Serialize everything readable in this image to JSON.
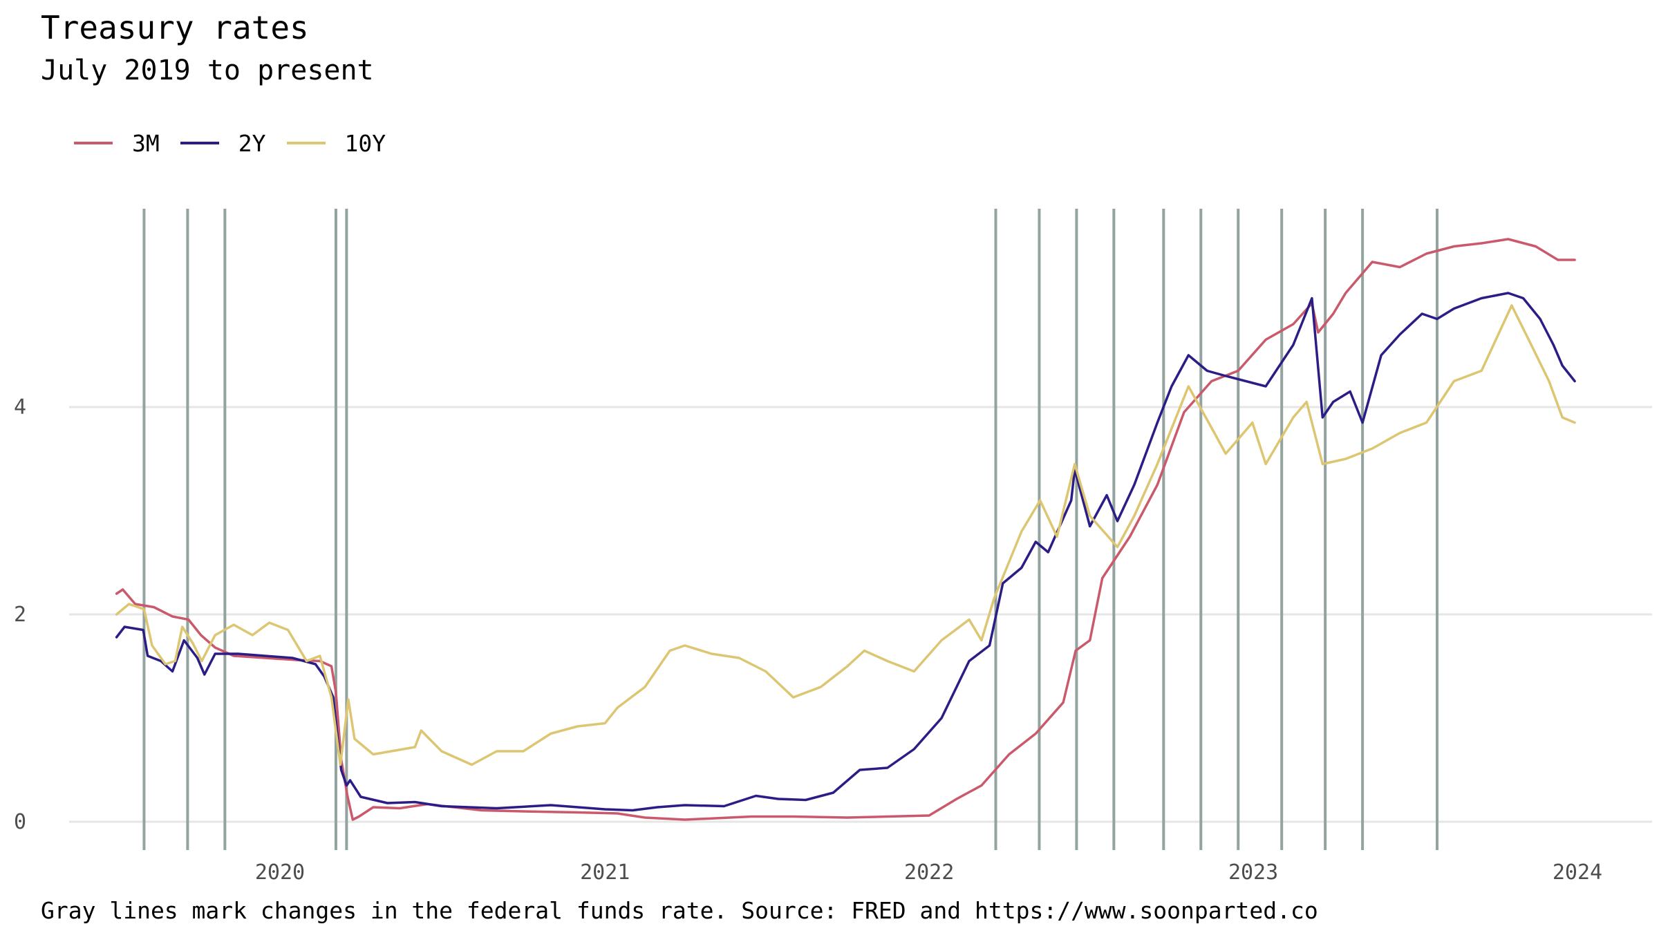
{
  "title": "Treasury rates",
  "subtitle": "July 2019 to present",
  "caption": "Gray lines mark changes in the federal funds rate. Source: FRED and https://www.soonparted.co",
  "legend": [
    {
      "label": "3M",
      "color": "#c9596b"
    },
    {
      "label": "2Y",
      "color": "#2b1d86"
    },
    {
      "label": "10Y",
      "color": "#dcc672"
    }
  ],
  "chart_data": {
    "type": "line",
    "title": "Treasury rates",
    "subtitle": "July 2019 to present",
    "xlabel": "",
    "ylabel": "",
    "x_ticks": [
      "2020",
      "2021",
      "2022",
      "2023",
      "2024"
    ],
    "y_ticks": [
      "0",
      "2",
      "4"
    ],
    "y_tick_values": [
      0,
      2,
      4
    ],
    "xlim": [
      "2019-05-01",
      "2024-03-01"
    ],
    "ylim": [
      -0.3,
      6.0
    ],
    "grid": "horizontal",
    "legend_position": "top-left",
    "fed_rate_change_dates": [
      "2019-08-01",
      "2019-09-19",
      "2019-10-31",
      "2020-03-04",
      "2020-03-16",
      "2022-03-17",
      "2022-05-05",
      "2022-06-16",
      "2022-07-28",
      "2022-09-22",
      "2022-11-03",
      "2022-12-15",
      "2023-02-02",
      "2023-03-23",
      "2023-05-04",
      "2023-07-27"
    ],
    "series": [
      {
        "name": "3M",
        "color": "#c9596b",
        "points": [
          [
            "2019-07-01",
            2.2
          ],
          [
            "2019-07-08",
            2.24
          ],
          [
            "2019-07-22",
            2.1
          ],
          [
            "2019-08-12",
            2.07
          ],
          [
            "2019-09-02",
            1.98
          ],
          [
            "2019-09-20",
            1.95
          ],
          [
            "2019-10-04",
            1.8
          ],
          [
            "2019-10-20",
            1.68
          ],
          [
            "2019-11-10",
            1.6
          ],
          [
            "2019-12-15",
            1.58
          ],
          [
            "2020-01-20",
            1.56
          ],
          [
            "2020-02-15",
            1.55
          ],
          [
            "2020-02-28",
            1.5
          ],
          [
            "2020-03-04",
            1.25
          ],
          [
            "2020-03-10",
            0.6
          ],
          [
            "2020-03-17",
            0.25
          ],
          [
            "2020-03-23",
            0.02
          ],
          [
            "2020-03-30",
            0.05
          ],
          [
            "2020-04-15",
            0.14
          ],
          [
            "2020-05-15",
            0.13
          ],
          [
            "2020-06-15",
            0.17
          ],
          [
            "2020-07-15",
            0.14
          ],
          [
            "2020-08-15",
            0.11
          ],
          [
            "2020-10-01",
            0.1
          ],
          [
            "2020-12-01",
            0.09
          ],
          [
            "2021-01-15",
            0.08
          ],
          [
            "2021-02-15",
            0.04
          ],
          [
            "2021-04-01",
            0.02
          ],
          [
            "2021-06-15",
            0.05
          ],
          [
            "2021-08-01",
            0.05
          ],
          [
            "2021-10-01",
            0.04
          ],
          [
            "2021-11-15",
            0.05
          ],
          [
            "2022-01-01",
            0.06
          ],
          [
            "2022-02-01",
            0.22
          ],
          [
            "2022-03-01",
            0.35
          ],
          [
            "2022-04-01",
            0.65
          ],
          [
            "2022-05-01",
            0.85
          ],
          [
            "2022-06-01",
            1.15
          ],
          [
            "2022-06-15",
            1.65
          ],
          [
            "2022-07-01",
            1.75
          ],
          [
            "2022-07-15",
            2.35
          ],
          [
            "2022-08-15",
            2.75
          ],
          [
            "2022-09-15",
            3.25
          ],
          [
            "2022-10-15",
            3.95
          ],
          [
            "2022-11-15",
            4.25
          ],
          [
            "2022-12-15",
            4.35
          ],
          [
            "2023-01-15",
            4.65
          ],
          [
            "2023-02-15",
            4.8
          ],
          [
            "2023-03-08",
            5.0
          ],
          [
            "2023-03-15",
            4.72
          ],
          [
            "2023-04-01",
            4.9
          ],
          [
            "2023-04-15",
            5.1
          ],
          [
            "2023-05-15",
            5.4
          ],
          [
            "2023-06-15",
            5.35
          ],
          [
            "2023-07-15",
            5.48
          ],
          [
            "2023-08-15",
            5.55
          ],
          [
            "2023-09-15",
            5.58
          ],
          [
            "2023-10-15",
            5.62
          ],
          [
            "2023-11-15",
            5.55
          ],
          [
            "2023-12-10",
            5.42
          ],
          [
            "2023-12-29",
            5.42
          ]
        ]
      },
      {
        "name": "2Y",
        "color": "#2b1d86",
        "points": [
          [
            "2019-07-01",
            1.78
          ],
          [
            "2019-07-10",
            1.88
          ],
          [
            "2019-07-31",
            1.85
          ],
          [
            "2019-08-05",
            1.6
          ],
          [
            "2019-08-20",
            1.55
          ],
          [
            "2019-09-02",
            1.45
          ],
          [
            "2019-09-15",
            1.75
          ],
          [
            "2019-09-30",
            1.58
          ],
          [
            "2019-10-08",
            1.42
          ],
          [
            "2019-10-20",
            1.62
          ],
          [
            "2019-11-15",
            1.62
          ],
          [
            "2019-12-15",
            1.6
          ],
          [
            "2020-01-15",
            1.58
          ],
          [
            "2020-02-10",
            1.52
          ],
          [
            "2020-02-20",
            1.4
          ],
          [
            "2020-03-01",
            1.2
          ],
          [
            "2020-03-10",
            0.5
          ],
          [
            "2020-03-16",
            0.35
          ],
          [
            "2020-03-20",
            0.4
          ],
          [
            "2020-04-01",
            0.24
          ],
          [
            "2020-05-01",
            0.18
          ],
          [
            "2020-06-01",
            0.19
          ],
          [
            "2020-07-01",
            0.15
          ],
          [
            "2020-09-01",
            0.13
          ],
          [
            "2020-11-01",
            0.16
          ],
          [
            "2021-01-01",
            0.12
          ],
          [
            "2021-02-01",
            0.11
          ],
          [
            "2021-03-01",
            0.14
          ],
          [
            "2021-04-01",
            0.16
          ],
          [
            "2021-05-15",
            0.15
          ],
          [
            "2021-06-20",
            0.25
          ],
          [
            "2021-07-15",
            0.22
          ],
          [
            "2021-08-15",
            0.21
          ],
          [
            "2021-09-15",
            0.28
          ],
          [
            "2021-10-15",
            0.5
          ],
          [
            "2021-11-15",
            0.52
          ],
          [
            "2021-12-15",
            0.7
          ],
          [
            "2022-01-15",
            1.0
          ],
          [
            "2022-02-15",
            1.55
          ],
          [
            "2022-03-10",
            1.7
          ],
          [
            "2022-03-25",
            2.3
          ],
          [
            "2022-04-15",
            2.45
          ],
          [
            "2022-05-01",
            2.7
          ],
          [
            "2022-05-15",
            2.6
          ],
          [
            "2022-06-10",
            3.1
          ],
          [
            "2022-06-14",
            3.4
          ],
          [
            "2022-07-01",
            2.85
          ],
          [
            "2022-07-20",
            3.15
          ],
          [
            "2022-08-01",
            2.9
          ],
          [
            "2022-08-20",
            3.25
          ],
          [
            "2022-09-15",
            3.85
          ],
          [
            "2022-10-01",
            4.2
          ],
          [
            "2022-10-20",
            4.5
          ],
          [
            "2022-11-10",
            4.35
          ],
          [
            "2022-12-01",
            4.3
          ],
          [
            "2023-01-15",
            4.2
          ],
          [
            "2023-02-15",
            4.6
          ],
          [
            "2023-03-08",
            5.05
          ],
          [
            "2023-03-20",
            3.9
          ],
          [
            "2023-04-01",
            4.05
          ],
          [
            "2023-04-20",
            4.15
          ],
          [
            "2023-05-04",
            3.85
          ],
          [
            "2023-05-25",
            4.5
          ],
          [
            "2023-06-15",
            4.7
          ],
          [
            "2023-07-10",
            4.9
          ],
          [
            "2023-07-27",
            4.85
          ],
          [
            "2023-08-15",
            4.95
          ],
          [
            "2023-09-15",
            5.05
          ],
          [
            "2023-10-15",
            5.1
          ],
          [
            "2023-11-01",
            5.05
          ],
          [
            "2023-11-20",
            4.85
          ],
          [
            "2023-12-05",
            4.6
          ],
          [
            "2023-12-15",
            4.4
          ],
          [
            "2023-12-29",
            4.25
          ]
        ]
      },
      {
        "name": "10Y",
        "color": "#dcc672",
        "points": [
          [
            "2019-07-01",
            2.0
          ],
          [
            "2019-07-15",
            2.1
          ],
          [
            "2019-08-01",
            2.05
          ],
          [
            "2019-08-10",
            1.7
          ],
          [
            "2019-08-25",
            1.52
          ],
          [
            "2019-09-05",
            1.55
          ],
          [
            "2019-09-13",
            1.88
          ],
          [
            "2019-09-25",
            1.72
          ],
          [
            "2019-10-05",
            1.55
          ],
          [
            "2019-10-20",
            1.8
          ],
          [
            "2019-11-10",
            1.9
          ],
          [
            "2019-12-01",
            1.8
          ],
          [
            "2019-12-20",
            1.92
          ],
          [
            "2020-01-10",
            1.85
          ],
          [
            "2020-01-31",
            1.55
          ],
          [
            "2020-02-15",
            1.6
          ],
          [
            "2020-02-28",
            1.2
          ],
          [
            "2020-03-09",
            0.55
          ],
          [
            "2020-03-18",
            1.18
          ],
          [
            "2020-03-25",
            0.8
          ],
          [
            "2020-04-15",
            0.65
          ],
          [
            "2020-06-01",
            0.72
          ],
          [
            "2020-06-08",
            0.88
          ],
          [
            "2020-07-01",
            0.68
          ],
          [
            "2020-08-04",
            0.55
          ],
          [
            "2020-09-01",
            0.68
          ],
          [
            "2020-10-01",
            0.68
          ],
          [
            "2020-11-01",
            0.85
          ],
          [
            "2020-12-01",
            0.92
          ],
          [
            "2021-01-01",
            0.95
          ],
          [
            "2021-01-15",
            1.1
          ],
          [
            "2021-02-15",
            1.3
          ],
          [
            "2021-03-15",
            1.65
          ],
          [
            "2021-04-01",
            1.7
          ],
          [
            "2021-05-01",
            1.62
          ],
          [
            "2021-06-01",
            1.58
          ],
          [
            "2021-07-01",
            1.45
          ],
          [
            "2021-08-01",
            1.2
          ],
          [
            "2021-09-01",
            1.3
          ],
          [
            "2021-10-01",
            1.5
          ],
          [
            "2021-10-20",
            1.65
          ],
          [
            "2021-11-15",
            1.55
          ],
          [
            "2021-12-15",
            1.45
          ],
          [
            "2022-01-15",
            1.75
          ],
          [
            "2022-02-15",
            1.95
          ],
          [
            "2022-03-01",
            1.75
          ],
          [
            "2022-03-15",
            2.15
          ],
          [
            "2022-04-15",
            2.8
          ],
          [
            "2022-05-06",
            3.1
          ],
          [
            "2022-05-25",
            2.75
          ],
          [
            "2022-06-14",
            3.45
          ],
          [
            "2022-07-01",
            2.95
          ],
          [
            "2022-08-01",
            2.65
          ],
          [
            "2022-08-20",
            2.95
          ],
          [
            "2022-09-15",
            3.45
          ],
          [
            "2022-10-20",
            4.2
          ],
          [
            "2022-11-15",
            3.8
          ],
          [
            "2022-12-01",
            3.55
          ],
          [
            "2022-12-31",
            3.85
          ],
          [
            "2023-01-15",
            3.45
          ],
          [
            "2023-02-15",
            3.9
          ],
          [
            "2023-03-02",
            4.05
          ],
          [
            "2023-03-20",
            3.45
          ],
          [
            "2023-04-15",
            3.5
          ],
          [
            "2023-05-15",
            3.6
          ],
          [
            "2023-06-15",
            3.75
          ],
          [
            "2023-07-15",
            3.85
          ],
          [
            "2023-08-15",
            4.25
          ],
          [
            "2023-09-15",
            4.35
          ],
          [
            "2023-10-19",
            4.98
          ],
          [
            "2023-11-10",
            4.6
          ],
          [
            "2023-11-30",
            4.25
          ],
          [
            "2023-12-15",
            3.9
          ],
          [
            "2023-12-29",
            3.85
          ]
        ]
      }
    ]
  }
}
